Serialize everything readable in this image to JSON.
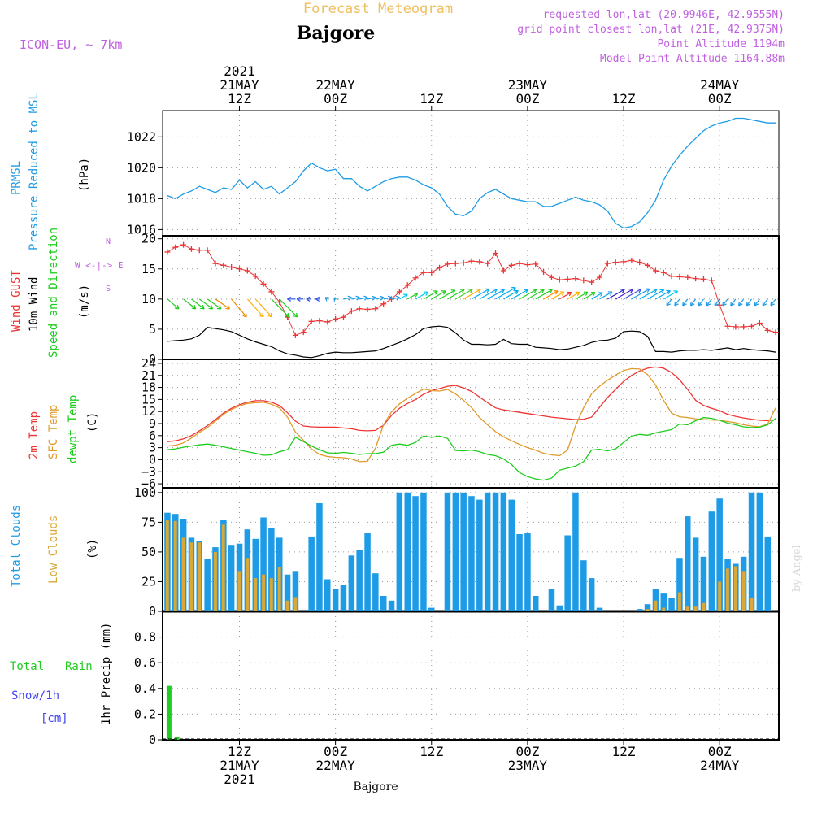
{
  "header": {
    "title": "Forecast Meteogram",
    "location": "Bajgore",
    "model": "ICON-EU, ~ 7km",
    "requested": "requested lon,lat (20.9946E, 42.9555N)",
    "grid_point": "grid point closest lon,lat (21E, 42.9375N)",
    "point_altitude": "Point Altitude 1194m",
    "model_altitude": "Model Point Altitude 1164.88m",
    "watermark": "by Angel",
    "footer_location": "Bajgore"
  },
  "time_axis": {
    "start": "2021-05-21T03Z",
    "end": "2021-05-24T05Z",
    "top_ticks": [
      {
        "t": "2021-05-21T12Z",
        "lines": [
          "2021",
          "21MAY",
          "12Z"
        ]
      },
      {
        "t": "2021-05-22T00Z",
        "lines": [
          "22MAY",
          "00Z"
        ]
      },
      {
        "t": "2021-05-22T12Z",
        "lines": [
          "12Z"
        ]
      },
      {
        "t": "2021-05-23T00Z",
        "lines": [
          "23MAY",
          "00Z"
        ]
      },
      {
        "t": "2021-05-23T12Z",
        "lines": [
          "12Z"
        ]
      },
      {
        "t": "2021-05-24T00Z",
        "lines": [
          "24MAY",
          "00Z"
        ]
      }
    ],
    "bottom_ticks": [
      {
        "t": "2021-05-21T12Z",
        "lines": [
          "12Z",
          "21MAY",
          "2021"
        ]
      },
      {
        "t": "2021-05-22T00Z",
        "lines": [
          "00Z",
          "22MAY"
        ]
      },
      {
        "t": "2021-05-22T12Z",
        "lines": [
          "12Z"
        ]
      },
      {
        "t": "2021-05-23T00Z",
        "lines": [
          "00Z",
          "23MAY"
        ]
      },
      {
        "t": "2021-05-23T12Z",
        "lines": [
          "12Z"
        ]
      },
      {
        "t": "2021-05-24T00Z",
        "lines": [
          "00Z",
          "24MAY"
        ]
      }
    ]
  },
  "colors": {
    "pressure": "#1e9be6",
    "gust": "#ee3333",
    "wind": "#000000",
    "temp": "#ee3333",
    "sfc": "#e09a2a",
    "dewpt": "#1ecc1e",
    "total_clouds": "#1e9be6",
    "low_clouds": "#d8a838",
    "rain": "#22cc22",
    "snow": "#4444ee",
    "header_purple": "#c060e0",
    "title_orange": "#f0c060"
  },
  "panels": {
    "pressure": {
      "label1": "PRMSL",
      "label2": "Pressure Reduced to MSL",
      "unit": "(hPa)"
    },
    "wind": {
      "label_gust": "Wind GUST",
      "label_wind": "10m Wind",
      "label_dir": "Speed and Direction",
      "unit": "(m/s)",
      "compass": "W <-|-> E"
    },
    "temp": {
      "label_temp": "2m Temp",
      "label_sfc": "SFC Temp",
      "label_dew": "dewpt Temp",
      "unit": "(C)"
    },
    "clouds": {
      "label_total": "Total Clouds",
      "label_low": "Low Clouds",
      "unit": "(%)"
    },
    "precip": {
      "label_rain1": "Total",
      "label_rain2": "Rain",
      "label_snow": "Snow/1h",
      "label_cm": "[cm]",
      "ylabel": "1hr Precip (mm)"
    }
  },
  "chart_data": [
    {
      "type": "line",
      "name": "pressure",
      "ylim": [
        1015.6,
        1023.7
      ],
      "yticks": [
        1016,
        1018,
        1020,
        1022
      ],
      "x_hours": [
        0,
        1,
        2,
        3,
        4,
        5,
        6,
        7,
        8,
        9,
        10,
        11,
        12,
        13,
        14,
        15,
        16,
        17,
        18,
        19,
        20,
        21,
        22,
        23,
        24,
        25,
        26,
        27,
        28,
        29,
        30,
        31,
        32,
        33,
        34,
        35,
        36,
        37,
        38,
        39,
        40,
        41,
        42,
        43,
        44,
        45,
        46,
        47,
        48,
        49,
        50,
        51,
        52,
        53,
        54,
        55,
        56,
        57,
        58,
        59,
        60,
        61,
        62,
        63,
        64,
        65,
        66,
        67,
        68,
        69,
        70,
        71,
        72,
        73,
        74,
        75,
        76
      ],
      "series": [
        {
          "name": "PRMSL",
          "values": [
            1018.2,
            1018.0,
            1018.3,
            1018.5,
            1018.8,
            1018.6,
            1018.4,
            1018.7,
            1018.6,
            1019.2,
            1018.7,
            1019.1,
            1018.6,
            1018.8,
            1018.3,
            1018.7,
            1019.1,
            1019.8,
            1020.3,
            1020.0,
            1019.8,
            1019.9,
            1019.3,
            1019.3,
            1018.8,
            1018.5,
            1018.8,
            1019.1,
            1019.3,
            1019.4,
            1019.4,
            1019.2,
            1018.9,
            1018.7,
            1018.3,
            1017.5,
            1017.0,
            1016.9,
            1017.2,
            1018.0,
            1018.4,
            1018.6,
            1018.3,
            1018.0,
            1017.9,
            1017.8,
            1017.8,
            1017.5,
            1017.5,
            1017.7,
            1017.9,
            1018.1,
            1017.9,
            1017.8,
            1017.6,
            1017.2,
            1016.4,
            1016.1,
            1016.2,
            1016.5,
            1017.1,
            1017.9,
            1019.2,
            1020.1,
            1020.8,
            1021.4,
            1021.9,
            1022.4,
            1022.7,
            1022.9,
            1023.0,
            1023.2,
            1023.2,
            1023.1,
            1023.0,
            1022.9,
            1022.9
          ]
        }
      ]
    },
    {
      "type": "line",
      "name": "wind",
      "ylim": [
        0,
        20.5
      ],
      "yticks": [
        0,
        5,
        10,
        15,
        20
      ],
      "x_hours": [
        0,
        1,
        2,
        3,
        4,
        5,
        6,
        7,
        8,
        9,
        10,
        11,
        12,
        13,
        14,
        15,
        16,
        17,
        18,
        19,
        20,
        21,
        22,
        23,
        24,
        25,
        26,
        27,
        28,
        29,
        30,
        31,
        32,
        33,
        34,
        35,
        36,
        37,
        38,
        39,
        40,
        41,
        42,
        43,
        44,
        45,
        46,
        47,
        48,
        49,
        50,
        51,
        52,
        53,
        54,
        55,
        56,
        57,
        58,
        59,
        60,
        61,
        62,
        63,
        64,
        65,
        66,
        67,
        68,
        69,
        70,
        71,
        72,
        73,
        74,
        75,
        76
      ],
      "series": [
        {
          "name": "Wind GUST",
          "values": [
            17.8,
            18.6,
            19.0,
            18.3,
            18.1,
            18.1,
            15.9,
            15.6,
            15.3,
            15.0,
            14.7,
            13.8,
            12.5,
            11.2,
            9.5,
            7.0,
            4.0,
            4.5,
            6.3,
            6.4,
            6.2,
            6.7,
            7.0,
            8.0,
            8.4,
            8.3,
            8.4,
            9.2,
            10.0,
            11.2,
            12.3,
            13.5,
            14.4,
            14.4,
            15.2,
            15.8,
            15.9,
            16.0,
            16.3,
            16.2,
            15.9,
            17.6,
            14.7,
            15.6,
            15.9,
            15.7,
            15.8,
            14.5,
            13.6,
            13.2,
            13.3,
            13.4,
            13.1,
            12.8,
            13.6,
            15.9,
            16.1,
            16.2,
            16.4,
            16.1,
            15.6,
            14.7,
            14.4,
            13.8,
            13.7,
            13.6,
            13.4,
            13.3,
            13.1,
            9.0,
            5.5,
            5.4,
            5.4,
            5.5,
            6.0,
            4.8,
            4.5
          ]
        },
        {
          "name": "10m Wind",
          "values": [
            3.0,
            3.1,
            3.2,
            3.4,
            4.0,
            5.3,
            5.1,
            4.9,
            4.6,
            4.0,
            3.4,
            2.9,
            2.5,
            2.1,
            1.4,
            0.9,
            0.7,
            0.4,
            0.3,
            0.6,
            1.0,
            1.2,
            1.1,
            1.1,
            1.2,
            1.3,
            1.4,
            1.8,
            2.3,
            2.8,
            3.4,
            4.1,
            5.1,
            5.4,
            5.5,
            5.3,
            4.4,
            3.2,
            2.5,
            2.5,
            2.4,
            2.5,
            3.3,
            2.6,
            2.5,
            2.5,
            2.0,
            1.9,
            1.8,
            1.6,
            1.7,
            2.0,
            2.3,
            2.8,
            3.1,
            3.2,
            3.5,
            4.6,
            4.7,
            4.6,
            3.8,
            1.3,
            1.3,
            1.2,
            1.4,
            1.5,
            1.5,
            1.6,
            1.5,
            1.7,
            1.9,
            1.6,
            1.8,
            1.6,
            1.5,
            1.4,
            1.2
          ]
        }
      ]
    },
    {
      "type": "line",
      "name": "temperature",
      "ylim": [
        -7,
        25
      ],
      "yticks": [
        -6,
        -3,
        0,
        3,
        6,
        9,
        12,
        15,
        18,
        21,
        24
      ],
      "x_hours": [
        0,
        1,
        2,
        3,
        4,
        5,
        6,
        7,
        8,
        9,
        10,
        11,
        12,
        13,
        14,
        15,
        16,
        17,
        18,
        19,
        20,
        21,
        22,
        23,
        24,
        25,
        26,
        27,
        28,
        29,
        30,
        31,
        32,
        33,
        34,
        35,
        36,
        37,
        38,
        39,
        40,
        41,
        42,
        43,
        44,
        45,
        46,
        47,
        48,
        49,
        50,
        51,
        52,
        53,
        54,
        55,
        56,
        57,
        58,
        59,
        60,
        61,
        62,
        63,
        64,
        65,
        66,
        67,
        68,
        69,
        70,
        71,
        72,
        73,
        74,
        75,
        76
      ],
      "series": [
        {
          "name": "2m Temp",
          "values": [
            4.5,
            4.7,
            5.2,
            6.0,
            7.2,
            8.5,
            10.0,
            11.6,
            12.8,
            13.7,
            14.3,
            14.7,
            14.7,
            14.3,
            13.5,
            11.7,
            9.6,
            8.4,
            8.2,
            8.1,
            8.1,
            8.1,
            7.9,
            7.7,
            7.3,
            7.2,
            7.3,
            8.6,
            11.0,
            12.8,
            14.0,
            15.0,
            16.3,
            17.2,
            17.7,
            18.3,
            18.5,
            17.9,
            17.0,
            15.6,
            14.2,
            12.9,
            12.4,
            12.1,
            11.8,
            11.5,
            11.2,
            10.9,
            10.6,
            10.4,
            10.2,
            10.0,
            10.1,
            10.6,
            13.1,
            15.5,
            17.5,
            19.5,
            21.0,
            22.1,
            22.8,
            23.1,
            22.8,
            21.7,
            19.9,
            17.5,
            14.8,
            13.5,
            12.8,
            12.2,
            11.3,
            10.8,
            10.4,
            10.1,
            9.8,
            9.7,
            10.0
          ]
        },
        {
          "name": "SFC Temp",
          "values": [
            3.4,
            3.6,
            4.2,
            5.4,
            6.8,
            8.0,
            9.6,
            11.3,
            12.5,
            13.4,
            14.0,
            14.2,
            14.3,
            13.8,
            12.9,
            10.6,
            6.9,
            4.8,
            2.7,
            1.3,
            0.8,
            0.6,
            0.5,
            0.2,
            -0.5,
            -0.4,
            2.9,
            8.7,
            11.9,
            13.9,
            15.3,
            16.5,
            17.6,
            17.2,
            17.1,
            17.5,
            16.4,
            14.8,
            13.0,
            10.5,
            8.7,
            7.0,
            5.7,
            4.7,
            3.8,
            3.0,
            2.4,
            1.6,
            1.2,
            1.0,
            2.4,
            8.5,
            12.9,
            16.4,
            18.3,
            19.8,
            21.1,
            22.2,
            22.7,
            22.6,
            21.2,
            18.6,
            14.8,
            11.6,
            10.7,
            10.5,
            10.2,
            10.0,
            9.9,
            9.8,
            9.5,
            9.2,
            8.7,
            8.4,
            8.2,
            8.9,
            12.9
          ]
        },
        {
          "name": "dewpt Temp",
          "values": [
            2.5,
            2.7,
            3.1,
            3.4,
            3.7,
            3.9,
            3.6,
            3.2,
            2.8,
            2.4,
            2.0,
            1.6,
            1.1,
            1.2,
            2.0,
            2.5,
            5.6,
            4.5,
            3.4,
            2.5,
            1.7,
            1.6,
            1.8,
            1.6,
            1.3,
            1.5,
            1.5,
            1.9,
            3.6,
            3.9,
            3.6,
            4.3,
            5.9,
            5.6,
            5.9,
            5.3,
            2.3,
            2.2,
            2.4,
            2.0,
            1.3,
            1.0,
            0.2,
            -1.2,
            -3.2,
            -4.2,
            -4.8,
            -5.1,
            -4.6,
            -2.6,
            -2.1,
            -1.6,
            -0.5,
            2.4,
            2.6,
            2.2,
            2.7,
            4.3,
            5.9,
            6.3,
            6.1,
            6.7,
            7.1,
            7.5,
            8.9,
            8.7,
            9.7,
            10.5,
            10.3,
            9.8,
            9.1,
            8.7,
            8.2,
            8.0,
            8.1,
            8.7,
            10.3
          ]
        }
      ]
    },
    {
      "type": "bar",
      "name": "clouds",
      "ylim": [
        0,
        104
      ],
      "yticks": [
        0,
        25,
        50,
        75,
        100
      ],
      "x_hours": [
        0,
        1,
        2,
        3,
        4,
        5,
        6,
        7,
        8,
        9,
        10,
        11,
        12,
        13,
        14,
        15,
        16,
        17,
        18,
        19,
        20,
        21,
        22,
        23,
        24,
        25,
        26,
        27,
        28,
        29,
        30,
        31,
        32,
        33,
        34,
        35,
        36,
        37,
        38,
        39,
        40,
        41,
        42,
        43,
        44,
        45,
        46,
        47,
        48,
        49,
        50,
        51,
        52,
        53,
        54,
        55,
        56,
        57,
        58,
        59,
        60,
        61,
        62,
        63,
        64,
        65,
        66,
        67,
        68,
        69,
        70,
        71,
        72,
        73,
        74,
        75,
        76
      ],
      "series": [
        {
          "name": "Total Clouds",
          "values": [
            83,
            82,
            78,
            62,
            59,
            44,
            54,
            77,
            56,
            57,
            69,
            61,
            79,
            70,
            62,
            31,
            34,
            0,
            63,
            91,
            27,
            19,
            22,
            47,
            52,
            66,
            32,
            13,
            9,
            100,
            100,
            97,
            100,
            3,
            0,
            100,
            100,
            100,
            97,
            94,
            100,
            100,
            100,
            94,
            65,
            66,
            13,
            0,
            19,
            5,
            64,
            100,
            43,
            28,
            3,
            0,
            0,
            0,
            0,
            2,
            6,
            19,
            15,
            11,
            45,
            80,
            62,
            46,
            84,
            95,
            44,
            40,
            46,
            100,
            100,
            63,
            0
          ]
        },
        {
          "name": "Low Clouds",
          "values": [
            77,
            76,
            62,
            58,
            58,
            0,
            50,
            73,
            0,
            34,
            45,
            28,
            31,
            28,
            37,
            9,
            12,
            0,
            0,
            0,
            0,
            0,
            0,
            0,
            0,
            0,
            0,
            0,
            0,
            0,
            0,
            0,
            0,
            0,
            0,
            0,
            0,
            0,
            0,
            0,
            0,
            0,
            0,
            0,
            0,
            0,
            0,
            0,
            0,
            0,
            0,
            0,
            0,
            0,
            0,
            0,
            0,
            0,
            0,
            0,
            2,
            9,
            3,
            0,
            16,
            4,
            4,
            7,
            0,
            25,
            36,
            38,
            34,
            11,
            0,
            0,
            0
          ]
        }
      ]
    },
    {
      "type": "bar",
      "name": "precip",
      "ylim": [
        0,
        1.0
      ],
      "yticks": [
        0,
        0.2,
        0.4,
        0.6,
        0.8
      ],
      "x_hours": [
        0,
        1
      ],
      "series": [
        {
          "name": "Total Rain",
          "values": [
            0.42,
            0.02
          ]
        }
      ]
    }
  ]
}
